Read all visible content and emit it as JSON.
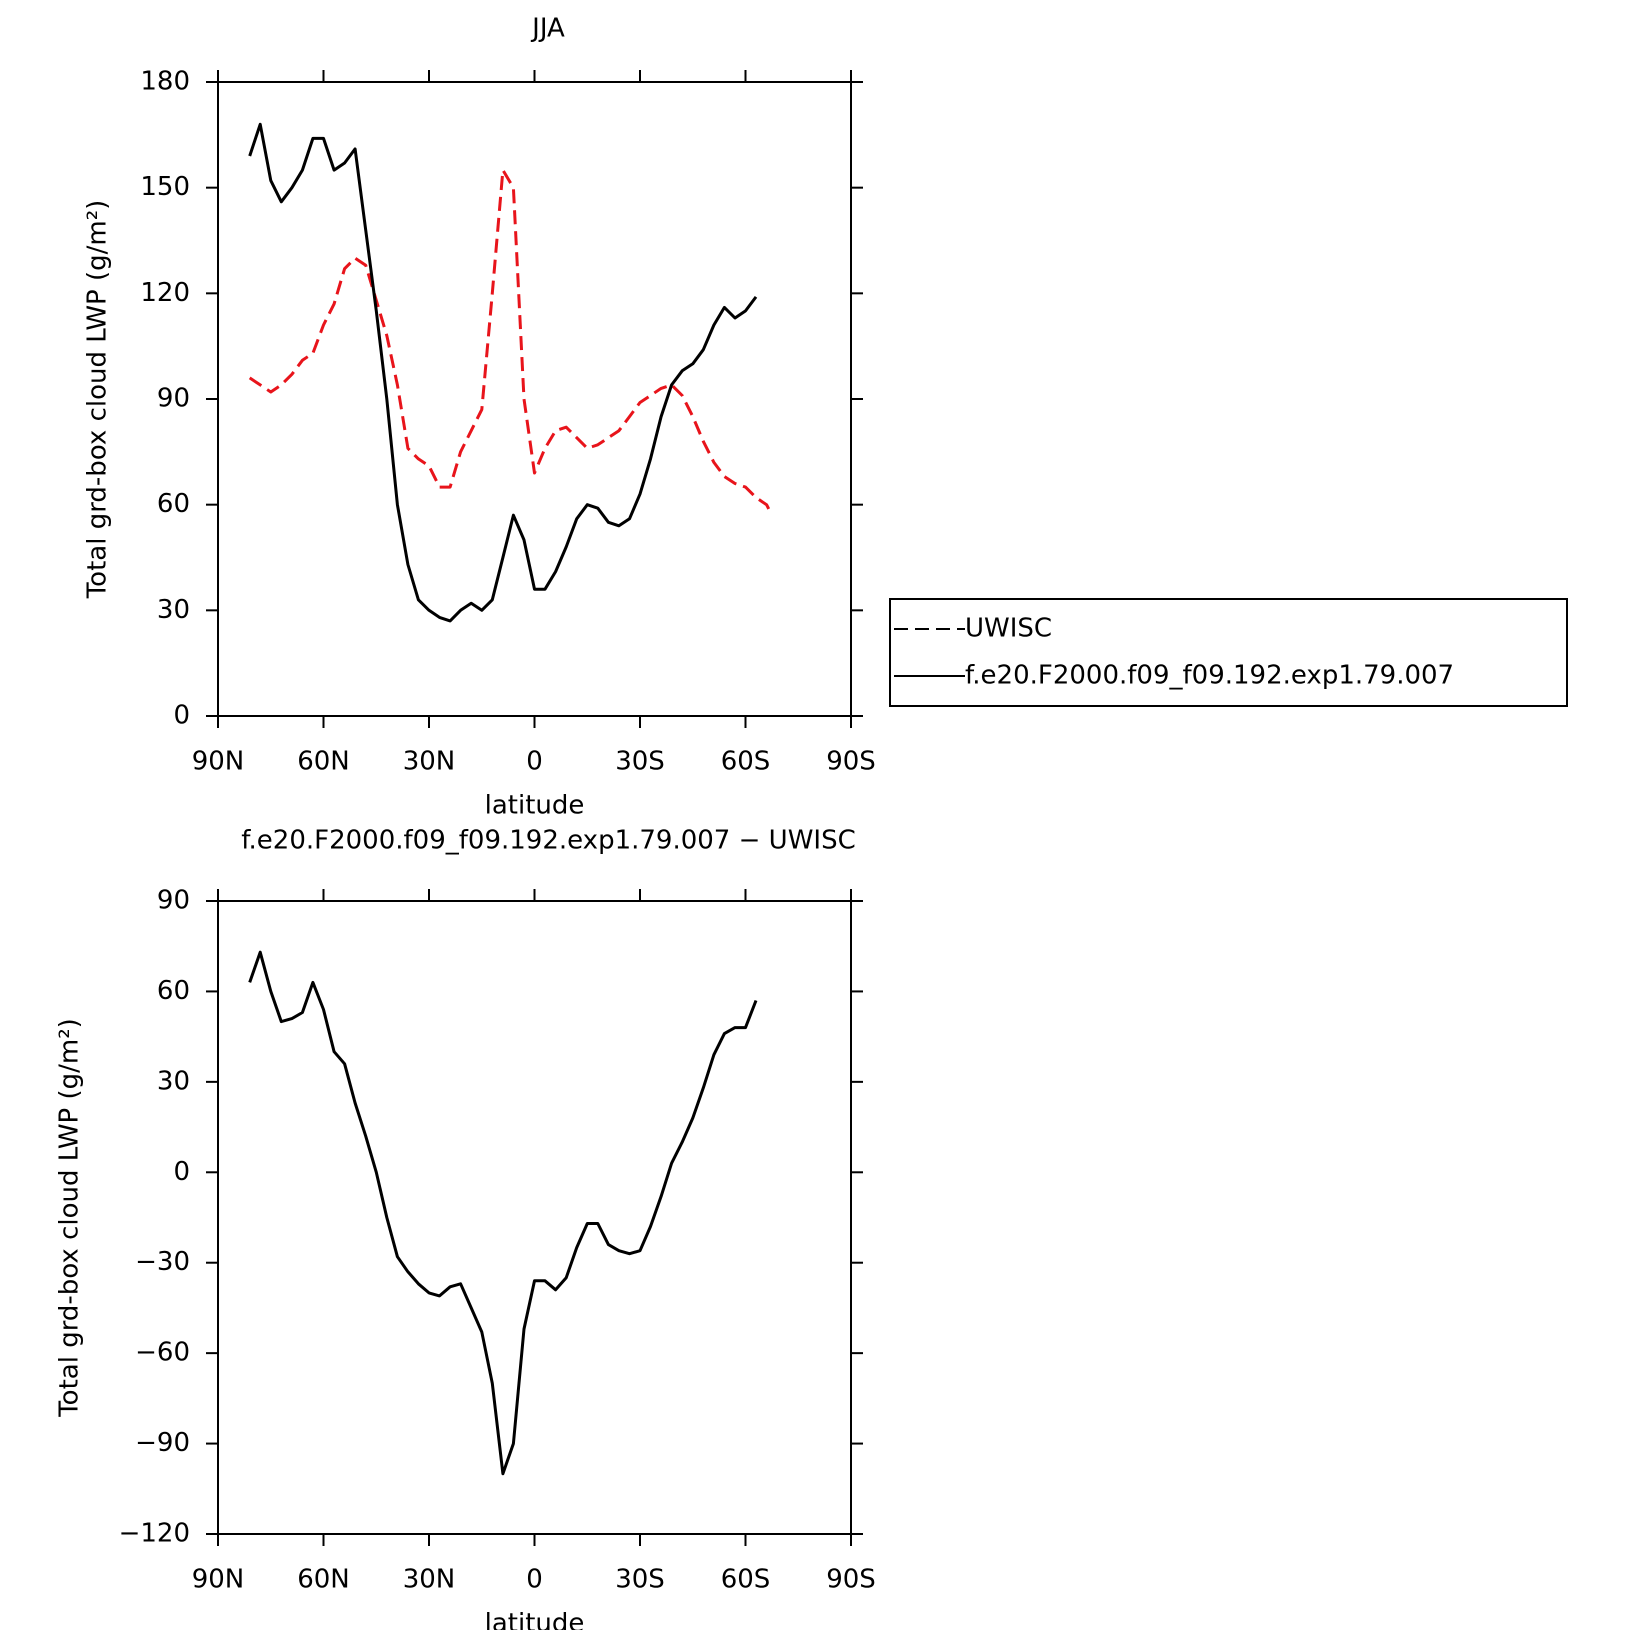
{
  "chart_data": [
    {
      "type": "line",
      "title": "JJA",
      "xlabel": "latitude",
      "ylabel": "Total grd-box cloud LWP (g/m²)",
      "x": [
        81,
        78,
        75,
        72,
        69,
        66,
        63,
        60,
        57,
        54,
        51,
        48,
        45,
        42,
        39,
        36,
        33,
        30,
        27,
        24,
        21,
        18,
        15,
        12,
        9,
        6,
        3,
        0,
        -3,
        -6,
        -9,
        -12,
        -15,
        -18,
        -21,
        -24,
        -27,
        -30,
        -33,
        -36,
        -39,
        -42,
        -45,
        -48,
        -51,
        -54,
        -57,
        -60,
        -63,
        -66,
        -67
      ],
      "series": [
        {
          "name": "UWISC",
          "color": "#e8141b",
          "linestyle": "dashed",
          "values": [
            96,
            94,
            92,
            94,
            97,
            101,
            103,
            111,
            117,
            127,
            130,
            128,
            118,
            108,
            94,
            76,
            73,
            71,
            65,
            65,
            75,
            81,
            87,
            120,
            155,
            150,
            90,
            69,
            76,
            81,
            82,
            79,
            76,
            77,
            79,
            81,
            85,
            89,
            91,
            93,
            94,
            91,
            85,
            78,
            72,
            68,
            66,
            65,
            62,
            60,
            58
          ]
        },
        {
          "name": "f.e20.F2000.f09_f09.192.exp1.79.007",
          "color": "#000000",
          "linestyle": "solid",
          "values": [
            159,
            168,
            152,
            146,
            150,
            155,
            164,
            164,
            155,
            157,
            161,
            138,
            115,
            90,
            60,
            43,
            33,
            30,
            28,
            27,
            30,
            32,
            30,
            33,
            45,
            57,
            50,
            36,
            36,
            41,
            48,
            56,
            60,
            59,
            55,
            54,
            56,
            63,
            73,
            85,
            94,
            98,
            100,
            104,
            111,
            116,
            113,
            115,
            119,
            null,
            null
          ]
        }
      ],
      "xlim": [
        90,
        -90
      ],
      "xticks": [
        {
          "value": 90,
          "label": "90N"
        },
        {
          "value": 60,
          "label": "60N"
        },
        {
          "value": 30,
          "label": "30N"
        },
        0,
        {
          "value": -30,
          "label": "30S"
        },
        {
          "value": -60,
          "label": "60S"
        },
        {
          "value": -90,
          "label": "90S"
        }
      ],
      "ylim": [
        0,
        180
      ],
      "yticks": [
        0,
        30,
        60,
        90,
        120,
        150,
        180
      ],
      "legend": "right"
    },
    {
      "type": "line",
      "title": "f.e20.F2000.f09_f09.192.exp1.79.007 − UWISC",
      "xlabel": "latitude",
      "ylabel": "Total grd-box cloud LWP (g/m²)",
      "x": [
        81,
        78,
        75,
        72,
        69,
        66,
        63,
        60,
        57,
        54,
        51,
        48,
        45,
        42,
        39,
        36,
        33,
        30,
        27,
        24,
        21,
        18,
        15,
        12,
        9,
        6,
        3,
        0,
        -3,
        -6,
        -9,
        -12,
        -15,
        -18,
        -21,
        -24,
        -27,
        -30,
        -33,
        -36,
        -39,
        -42,
        -45,
        -48,
        -51,
        -54,
        -57,
        -60,
        -63,
        -66,
        -67
      ],
      "color": "#000000",
      "values": [
        63,
        73,
        60,
        50,
        51,
        53,
        63,
        54,
        40,
        36,
        23,
        12,
        0,
        -15,
        -28,
        -33,
        -37,
        -40,
        -41,
        -38,
        -37,
        -45,
        -53,
        -70,
        -100,
        -90,
        -52,
        -36,
        -36,
        -39,
        -35,
        -25,
        -17,
        -17,
        -24,
        -26,
        -27,
        -26,
        -18,
        -8,
        3,
        10,
        18,
        28,
        39,
        46,
        48,
        48,
        57,
        null,
        null
      ],
      "xlim": [
        90,
        -90
      ],
      "xticks": [
        {
          "value": 90,
          "label": "90N"
        },
        {
          "value": 60,
          "label": "60N"
        },
        {
          "value": 30,
          "label": "30N"
        },
        0,
        {
          "value": -30,
          "label": "30S"
        },
        {
          "value": -60,
          "label": "60S"
        },
        {
          "value": -90,
          "label": "90S"
        }
      ],
      "ylim": [
        -120,
        90
      ],
      "yticks": [
        {
          "value": -120,
          "label": "−120"
        },
        {
          "value": -90,
          "label": "−90"
        },
        {
          "value": -60,
          "label": "−60"
        },
        {
          "value": -30,
          "label": "−30"
        },
        0,
        30,
        60,
        90
      ]
    }
  ]
}
